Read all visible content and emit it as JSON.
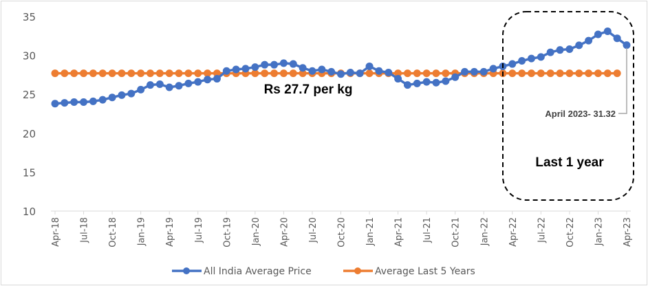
{
  "chart_data": {
    "type": "line",
    "title": "",
    "xlabel": "",
    "ylabel": "",
    "ylim": [
      10,
      35
    ],
    "yticks": [
      10,
      15,
      20,
      25,
      30,
      35
    ],
    "grid": false,
    "legend_position": "bottom",
    "x": [
      "Apr-18",
      "May-18",
      "Jun-18",
      "Jul-18",
      "Aug-18",
      "Sep-18",
      "Oct-18",
      "Nov-18",
      "Dec-18",
      "Jan-19",
      "Feb-19",
      "Mar-19",
      "Apr-19",
      "May-19",
      "Jun-19",
      "Jul-19",
      "Aug-19",
      "Sep-19",
      "Oct-19",
      "Nov-19",
      "Dec-19",
      "Jan-20",
      "Feb-20",
      "Mar-20",
      "Apr-20",
      "May-20",
      "Jun-20",
      "Jul-20",
      "Aug-20",
      "Sep-20",
      "Oct-20",
      "Nov-20",
      "Dec-20",
      "Jan-21",
      "Feb-21",
      "Mar-21",
      "Apr-21",
      "May-21",
      "Jun-21",
      "Jul-21",
      "Aug-21",
      "Sep-21",
      "Oct-21",
      "Nov-21",
      "Dec-21",
      "Jan-22",
      "Feb-22",
      "Mar-22",
      "Apr-22",
      "May-22",
      "Jun-22",
      "Jul-22",
      "Aug-22",
      "Sep-22",
      "Oct-22",
      "Nov-22",
      "Dec-22",
      "Jan-23",
      "Feb-23",
      "Mar-23",
      "Apr-23"
    ],
    "xtick_labels": [
      "Apr-18",
      "Jul-18",
      "Oct-18",
      "Jan-19",
      "Apr-19",
      "Jul-19",
      "Oct-19",
      "Jan-20",
      "Apr-20",
      "Jul-20",
      "Oct-20",
      "Jan-21",
      "Apr-21",
      "Jul-21",
      "Oct-21",
      "Jan-22",
      "Apr-22",
      "Jul-22",
      "Oct-22",
      "Jan-23",
      "Apr-23"
    ],
    "series": [
      {
        "name": "All India Average Price",
        "color": "#4472c4",
        "values": [
          23.8,
          23.9,
          24.0,
          24.0,
          24.1,
          24.3,
          24.6,
          24.9,
          25.1,
          25.6,
          26.2,
          26.3,
          25.9,
          26.1,
          26.4,
          26.6,
          26.9,
          27.0,
          28.0,
          28.2,
          28.3,
          28.5,
          28.8,
          28.8,
          29.0,
          28.9,
          28.4,
          28.0,
          28.2,
          27.9,
          27.6,
          27.8,
          27.7,
          28.6,
          28.0,
          27.8,
          27.0,
          26.2,
          26.4,
          26.6,
          26.5,
          26.7,
          27.2,
          27.9,
          27.9,
          27.9,
          28.3,
          28.6,
          28.9,
          29.3,
          29.6,
          29.8,
          30.4,
          30.7,
          30.8,
          31.3,
          31.9,
          32.7,
          33.1,
          32.2,
          31.32
        ]
      },
      {
        "name": "Average Last 5 Years",
        "color": "#ed7d31",
        "values": [
          27.7,
          27.7,
          27.7,
          27.7,
          27.7,
          27.7,
          27.7,
          27.7,
          27.7,
          27.7,
          27.7,
          27.7,
          27.7,
          27.7,
          27.7,
          27.7,
          27.7,
          27.7,
          27.7,
          27.7,
          27.7,
          27.7,
          27.7,
          27.7,
          27.7,
          27.7,
          27.7,
          27.7,
          27.7,
          27.7,
          27.7,
          27.7,
          27.7,
          27.7,
          27.7,
          27.7,
          27.7,
          27.7,
          27.7,
          27.7,
          27.7,
          27.7,
          27.7,
          27.7,
          27.7,
          27.7,
          27.7,
          27.7,
          27.7,
          27.7,
          27.7,
          27.7,
          27.7,
          27.7,
          27.7,
          27.7,
          27.7,
          27.7,
          27.7,
          27.7,
          null
        ]
      }
    ],
    "annotations": {
      "average_label": "Rs 27.7 per kg",
      "last_point_label": "April 2023- 31.32",
      "box_label": "Last 1 year"
    }
  }
}
